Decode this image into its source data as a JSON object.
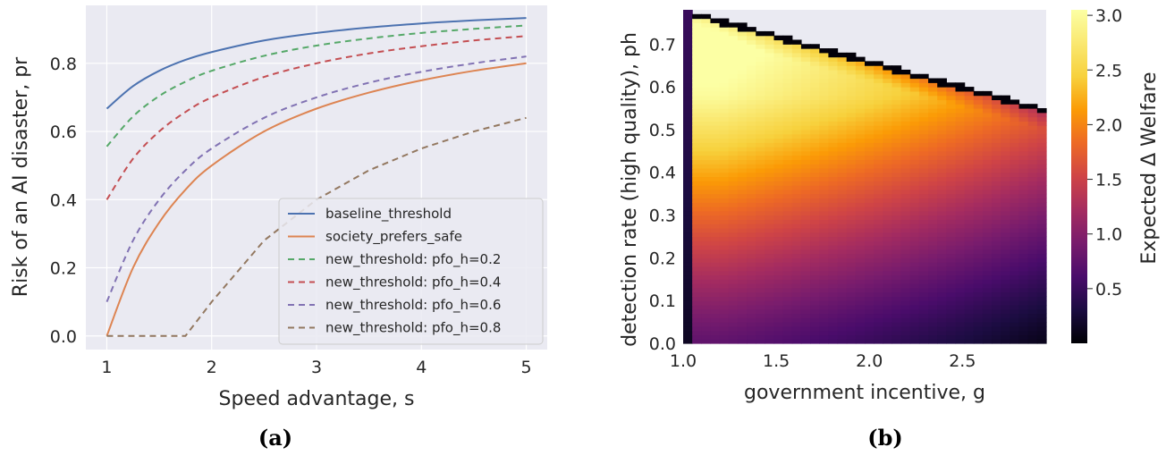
{
  "chart_data": [
    {
      "type": "line",
      "panel_label": "(a)",
      "xlabel": "Speed advantage, s",
      "ylabel": "Risk of an AI disaster, pr",
      "xlim": [
        0.8,
        5.2
      ],
      "ylim": [
        -0.04,
        0.97
      ],
      "xticks": [
        1,
        2,
        3,
        4,
        5
      ],
      "yticks": [
        0.0,
        0.2,
        0.4,
        0.6,
        0.8
      ],
      "grid": true,
      "legend_position": "lower-right",
      "x": [
        1.0,
        1.25,
        1.5,
        1.75,
        2.0,
        2.5,
        3.0,
        3.5,
        4.0,
        4.5,
        5.0
      ],
      "series": [
        {
          "name": "baseline_threshold",
          "style": "solid",
          "color": "#4c72b0",
          "values": [
            0.667,
            0.733,
            0.778,
            0.81,
            0.833,
            0.867,
            0.889,
            0.905,
            0.917,
            0.926,
            0.933
          ]
        },
        {
          "name": "society_prefers_safe",
          "style": "solid",
          "color": "#dd8452",
          "values": [
            0.0,
            0.2,
            0.333,
            0.429,
            0.5,
            0.6,
            0.667,
            0.714,
            0.75,
            0.778,
            0.8
          ]
        },
        {
          "name": "new_threshold: pfo_h=0.2",
          "style": "dashed",
          "color": "#55a868",
          "values": [
            0.556,
            0.644,
            0.704,
            0.746,
            0.778,
            0.822,
            0.852,
            0.873,
            0.889,
            0.901,
            0.911
          ]
        },
        {
          "name": "new_threshold: pfo_h=0.4",
          "style": "dashed",
          "color": "#c44e52",
          "values": [
            0.4,
            0.52,
            0.6,
            0.657,
            0.7,
            0.76,
            0.8,
            0.829,
            0.85,
            0.867,
            0.88
          ]
        },
        {
          "name": "new_threshold: pfo_h=0.6",
          "style": "dashed",
          "color": "#8172b3",
          "values": [
            0.1,
            0.28,
            0.4,
            0.486,
            0.55,
            0.64,
            0.7,
            0.743,
            0.775,
            0.8,
            0.82
          ]
        },
        {
          "name": "new_threshold: pfo_h=0.8",
          "style": "dashed",
          "color": "#937860",
          "values": [
            0.0,
            0.0,
            0.0,
            0.0,
            0.1,
            0.28,
            0.4,
            0.486,
            0.55,
            0.6,
            0.64
          ]
        }
      ]
    },
    {
      "type": "heatmap",
      "panel_label": "(b)",
      "xlabel": "government incentive, g",
      "ylabel": "detection rate (high quality), ph",
      "colorbar_label": "Expected Δ Welfare",
      "xlim": [
        1.0,
        2.95
      ],
      "ylim": [
        0.0,
        0.78
      ],
      "xticks": [
        1.0,
        1.5,
        2.0,
        2.5
      ],
      "yticks": [
        0.0,
        0.1,
        0.2,
        0.3,
        0.4,
        0.5,
        0.6,
        0.7
      ],
      "colorbar_range": [
        0.0,
        3.05
      ],
      "colorbar_ticks": [
        0.5,
        1.0,
        1.5,
        2.0,
        2.5,
        3.0
      ],
      "colormap": "inferno",
      "boundary": {
        "g": [
          1.0,
          1.05,
          2.95
        ],
        "ph_max": [
          0.78,
          0.777,
          0.55
        ]
      },
      "peak": {
        "g": 1.2,
        "ph": 0.58,
        "value": 3.0
      }
    }
  ]
}
